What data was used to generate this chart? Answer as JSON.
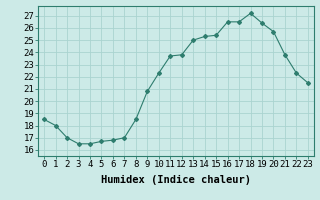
{
  "x": [
    0,
    1,
    2,
    3,
    4,
    5,
    6,
    7,
    8,
    9,
    10,
    11,
    12,
    13,
    14,
    15,
    16,
    17,
    18,
    19,
    20,
    21,
    22,
    23
  ],
  "y": [
    18.5,
    18.0,
    17.0,
    16.5,
    16.5,
    16.7,
    16.8,
    17.0,
    18.5,
    20.8,
    22.3,
    23.7,
    23.8,
    25.0,
    25.3,
    25.4,
    26.5,
    26.5,
    27.2,
    26.4,
    25.7,
    23.8,
    22.3,
    21.5
  ],
  "line_color": "#2e7d6e",
  "marker": "D",
  "marker_size": 2.0,
  "bg_color": "#cceae7",
  "grid_color": "#aad4d0",
  "xlabel": "Humidex (Indice chaleur)",
  "xlim": [
    -0.5,
    23.5
  ],
  "ylim": [
    15.5,
    27.8
  ],
  "yticks": [
    16,
    17,
    18,
    19,
    20,
    21,
    22,
    23,
    24,
    25,
    26,
    27
  ],
  "xticks": [
    0,
    1,
    2,
    3,
    4,
    5,
    6,
    7,
    8,
    9,
    10,
    11,
    12,
    13,
    14,
    15,
    16,
    17,
    18,
    19,
    20,
    21,
    22,
    23
  ],
  "tick_label_fontsize": 6.5,
  "xlabel_fontsize": 7.5
}
